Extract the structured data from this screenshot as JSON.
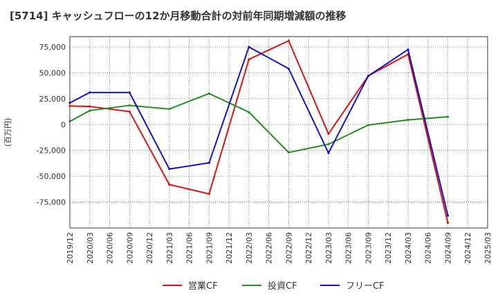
{
  "chart_data": {
    "type": "line",
    "title": "[5714]  キャッシュフローの12か月移動合計の対前年同期増減額の推移",
    "ylabel": "(百万円)",
    "xlabel": "",
    "ylim": [
      -100000,
      85000
    ],
    "yticks": [
      75000,
      50000,
      25000,
      0,
      -25000,
      -50000,
      -75000
    ],
    "ytick_labels": [
      "75,000",
      "50,000",
      "25,000",
      "0",
      "-25,000",
      "-50,000",
      "-75,000"
    ],
    "xticks": [
      "2019/12",
      "2020/03",
      "2020/06",
      "2020/09",
      "2020/12",
      "2021/03",
      "2021/06",
      "2021/09",
      "2021/12",
      "2022/03",
      "2022/06",
      "2022/09",
      "2022/12",
      "2023/03",
      "2023/06",
      "2023/09",
      "2023/12",
      "2024/03",
      "2024/06",
      "2024/09",
      "2024/12",
      "2025/03"
    ],
    "grid": true,
    "legend_position": "bottom",
    "series": [
      {
        "name": "営業CF",
        "color": "#dd1111",
        "x": [
          "2019/12",
          "2020/03",
          "2020/09",
          "2021/03",
          "2021/09",
          "2022/03",
          "2022/09",
          "2023/03",
          "2023/09",
          "2024/03",
          "2024/09"
        ],
        "values": [
          18000,
          17500,
          12500,
          -58000,
          -67000,
          63000,
          81000,
          -9000,
          47000,
          68000,
          -95000
        ]
      },
      {
        "name": "投資CF",
        "color": "#228b22",
        "x": [
          "2019/12",
          "2020/03",
          "2020/09",
          "2021/03",
          "2021/09",
          "2022/03",
          "2022/09",
          "2023/03",
          "2023/09",
          "2024/03",
          "2024/09"
        ],
        "values": [
          3000,
          13500,
          18500,
          15000,
          30000,
          12000,
          -27000,
          -19000,
          -500,
          4500,
          7500
        ]
      },
      {
        "name": "フリーCF",
        "color": "#1111cc",
        "x": [
          "2019/12",
          "2020/03",
          "2020/09",
          "2021/03",
          "2021/09",
          "2022/03",
          "2022/09",
          "2023/03",
          "2023/09",
          "2024/03",
          "2024/09"
        ],
        "values": [
          21000,
          31000,
          31000,
          -43000,
          -37000,
          75000,
          54000,
          -27500,
          47000,
          72500,
          -88000
        ]
      }
    ]
  }
}
